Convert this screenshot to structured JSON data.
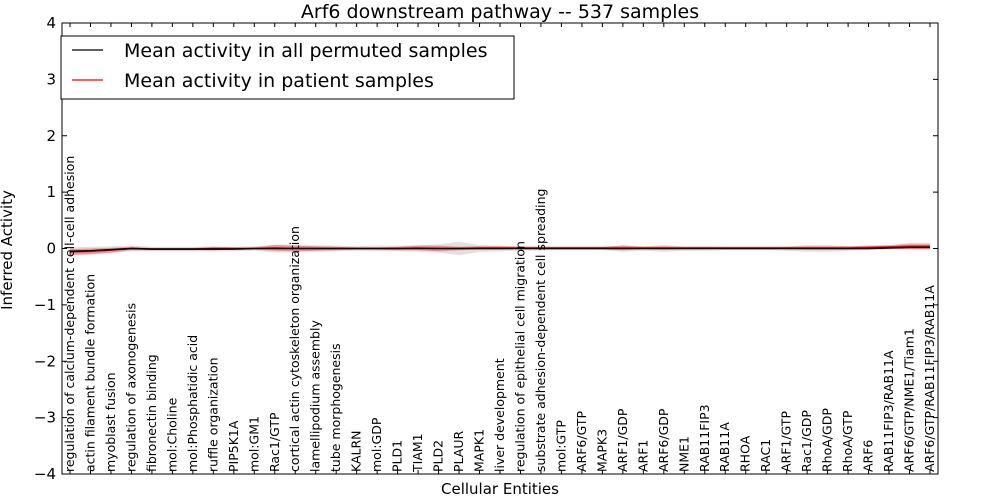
{
  "chart_data": {
    "type": "line",
    "title": "Arf6 downstream pathway -- 537 samples",
    "xlabel": "Cellular Entities",
    "ylabel": "Inferred Activity",
    "ylim": [
      -4,
      4
    ],
    "yticks": [
      -4,
      -3,
      -2,
      -1,
      0,
      1,
      2,
      3,
      4
    ],
    "ytick_labels": [
      "−4",
      "−3",
      "−2",
      "−1",
      "0",
      "1",
      "2",
      "3",
      "4"
    ],
    "grid": false,
    "legend_position": "top-left",
    "categories": [
      "regulation of calcium-dependent cell-cell adhesion",
      "actin filament bundle formation",
      "myoblast fusion",
      "regulation of axonogenesis",
      "fibronectin binding",
      "mol:Choline",
      "mol:Phosphatidic acid",
      "ruffle organization",
      "PIP5K1A",
      "mol:GM1",
      "Rac1/GTP",
      "cortical actin cytoskeleton organization",
      "lamellipodium assembly",
      "tube morphogenesis",
      "KALRN",
      "mol:GDP",
      "PLD1",
      "TIAM1",
      "PLD2",
      "PLAUR",
      "MAPK1",
      "liver development",
      "regulation of epithelial cell migration",
      "substrate adhesion-dependent cell spreading",
      "mol:GTP",
      "ARF6/GTP",
      "MAPK3",
      "ARF1/GDP",
      "ARF1",
      "ARF6/GDP",
      "NME1",
      "RAB11FIP3",
      "RAB11A",
      "RHOA",
      "RAC1",
      "ARF1/GTP",
      "Rac1/GDP",
      "RhoA/GDP",
      "RhoA/GTP",
      "ARF6",
      "RAB11FIP3/RAB11A",
      "ARF6/GTP/NME1/Tiam1",
      "ARF6/GTP/RAB11FIP3/RAB11A"
    ],
    "series": [
      {
        "name": "Mean activity in all permuted samples",
        "color": "#000000",
        "values": [
          -0.05,
          -0.04,
          -0.02,
          0.0,
          -0.01,
          -0.01,
          -0.01,
          -0.01,
          -0.01,
          0.0,
          0.0,
          0.0,
          0.0,
          0.0,
          0.0,
          0.0,
          0.0,
          0.0,
          0.0,
          0.0,
          0.0,
          0.0,
          0.0,
          0.0,
          0.0,
          0.0,
          0.0,
          0.0,
          0.0,
          0.0,
          0.0,
          0.0,
          0.0,
          0.0,
          0.0,
          0.0,
          0.0,
          0.0,
          0.0,
          0.0,
          0.01,
          0.02,
          0.02
        ],
        "spread": [
          0.07,
          0.07,
          0.06,
          0.05,
          0.04,
          0.04,
          0.04,
          0.04,
          0.04,
          0.04,
          0.07,
          0.07,
          0.06,
          0.05,
          0.04,
          0.05,
          0.05,
          0.06,
          0.07,
          0.12,
          0.06,
          0.05,
          0.04,
          0.04,
          0.03,
          0.03,
          0.03,
          0.06,
          0.04,
          0.06,
          0.04,
          0.04,
          0.03,
          0.03,
          0.03,
          0.04,
          0.06,
          0.06,
          0.04,
          0.03,
          0.03,
          0.04,
          0.04
        ]
      },
      {
        "name": "Mean activity in patient samples",
        "color": "#ff0000",
        "values": [
          -0.06,
          -0.05,
          -0.03,
          0.0,
          -0.01,
          -0.01,
          -0.01,
          0.0,
          0.0,
          0.0,
          0.01,
          0.0,
          0.0,
          0.0,
          0.0,
          0.0,
          0.0,
          0.01,
          0.0,
          0.0,
          0.01,
          0.01,
          0.01,
          0.01,
          0.01,
          0.01,
          0.01,
          0.01,
          0.01,
          0.01,
          0.01,
          0.01,
          0.01,
          0.01,
          0.01,
          0.01,
          0.01,
          0.01,
          0.01,
          0.02,
          0.03,
          0.04,
          0.04
        ],
        "spread": [
          0.05,
          0.05,
          0.04,
          0.03,
          0.02,
          0.02,
          0.02,
          0.03,
          0.02,
          0.02,
          0.05,
          0.05,
          0.04,
          0.03,
          0.02,
          0.02,
          0.03,
          0.04,
          0.05,
          0.03,
          0.03,
          0.03,
          0.02,
          0.02,
          0.02,
          0.02,
          0.02,
          0.04,
          0.02,
          0.03,
          0.02,
          0.02,
          0.02,
          0.02,
          0.02,
          0.02,
          0.03,
          0.03,
          0.03,
          0.03,
          0.03,
          0.05,
          0.05
        ]
      }
    ]
  }
}
